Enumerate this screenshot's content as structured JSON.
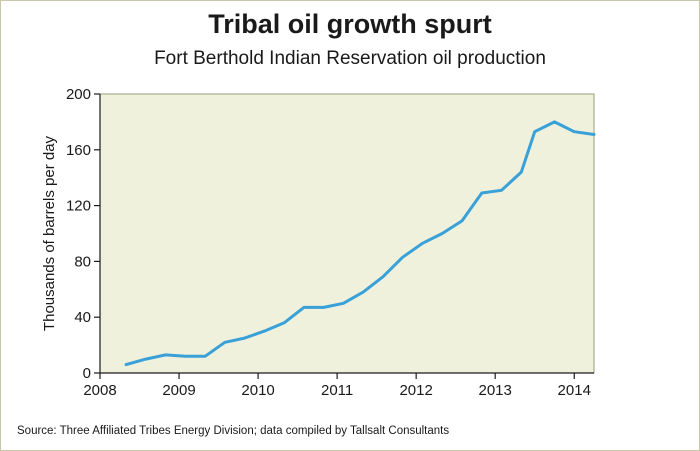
{
  "chart_data": {
    "type": "line",
    "title": "Tribal oil growth spurt",
    "subtitle": "Fort Berthold Indian Reservation oil production",
    "xlabel": "",
    "ylabel": "Thousands of barrels per day",
    "xlim": [
      2008,
      2014.25
    ],
    "ylim": [
      0,
      200
    ],
    "x_ticks": [
      2008,
      2009,
      2010,
      2011,
      2012,
      2013,
      2014
    ],
    "y_ticks": [
      0,
      40,
      80,
      120,
      160,
      200
    ],
    "grid": false,
    "legend": "none",
    "colors": {
      "line": "#3aa0d8",
      "plot_bg": "#eff1dc",
      "axis": "#1a1a1a"
    },
    "series": [
      {
        "x": [
          2008.33,
          2008.58,
          2008.83,
          2009.08,
          2009.33,
          2009.58,
          2009.83,
          2010.08,
          2010.33,
          2010.58,
          2010.83,
          2011.08,
          2011.33,
          2011.58,
          2011.83,
          2012.08,
          2012.33,
          2012.58,
          2012.83,
          2013.08,
          2013.33,
          2013.5,
          2013.75,
          2014.0,
          2014.25
        ],
        "y": [
          6,
          10,
          13,
          12,
          12,
          22,
          25,
          30,
          36,
          47,
          47,
          50,
          58,
          69,
          83,
          93,
          100,
          109,
          129,
          131,
          144,
          173,
          180,
          173,
          171
        ]
      }
    ]
  },
  "source": "Source: Three Affiliated Tribes Energy Division; data compiled by Tallsalt Consultants"
}
